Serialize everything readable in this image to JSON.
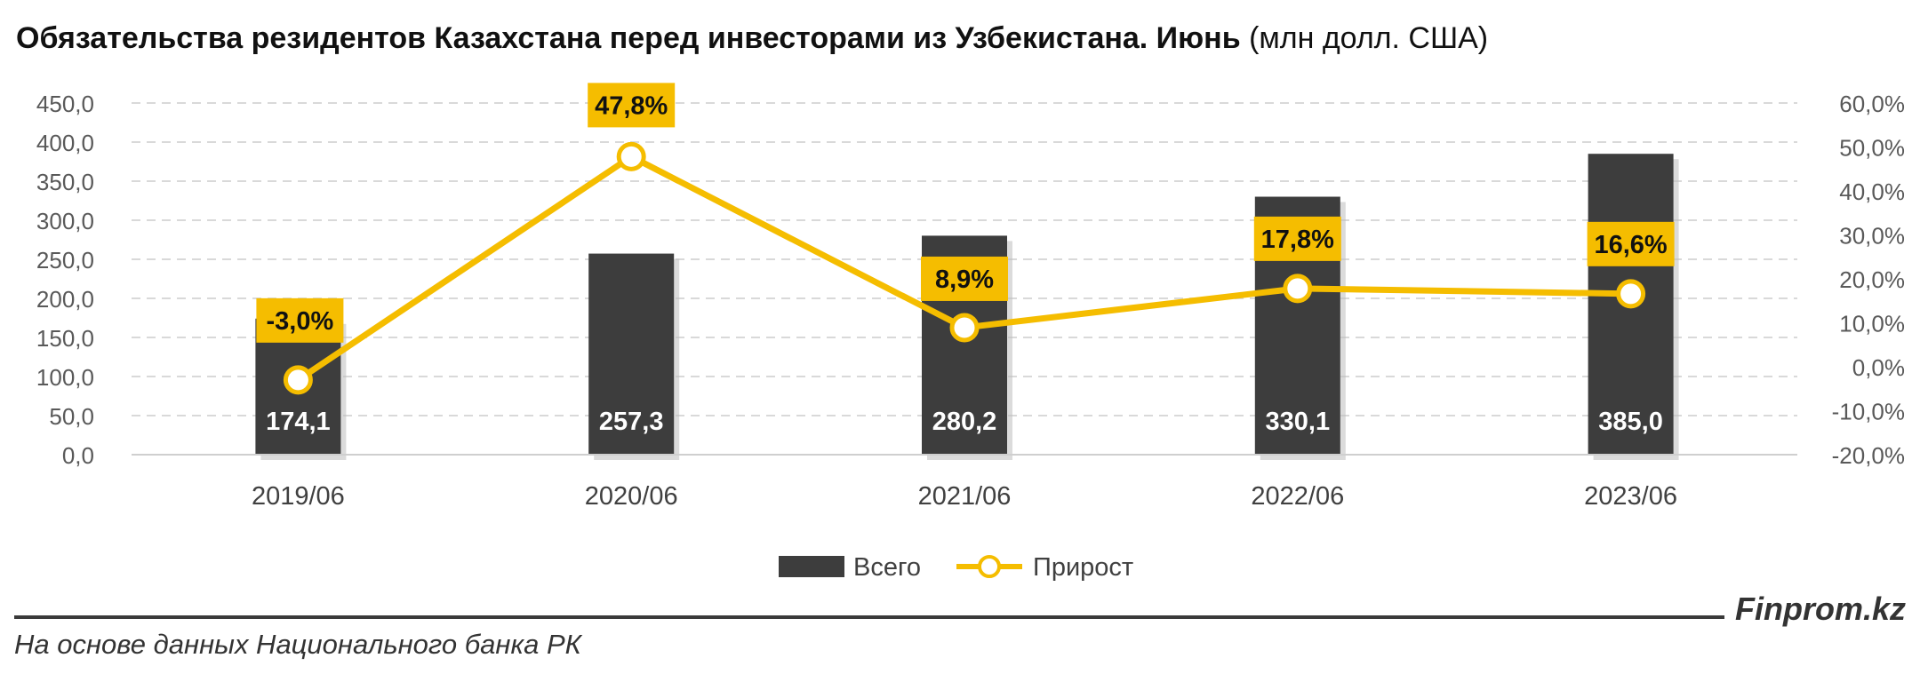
{
  "header": {
    "title_bold": "Обязательства резидентов Казахстана перед инвесторами из Узбекистана. Июнь",
    "title_unit": "(млн долл. США)"
  },
  "chart_data": {
    "type": "bar",
    "categories": [
      "2019/06",
      "2020/06",
      "2021/06",
      "2022/06",
      "2023/06"
    ],
    "series": [
      {
        "name": "Всего",
        "type": "bar",
        "axis": "left",
        "values": [
          174.1,
          257.3,
          280.2,
          330.1,
          385.0
        ],
        "labels": [
          "174,1",
          "257,3",
          "280,2",
          "330,1",
          "385,0"
        ],
        "color": "#3d3d3d"
      },
      {
        "name": "Прирост",
        "type": "line",
        "axis": "right",
        "values": [
          -3.0,
          47.8,
          8.9,
          17.8,
          16.6
        ],
        "labels": [
          "-3,0%",
          "47,8%",
          "8,9%",
          "17,8%",
          "16,6%"
        ],
        "color": "#f5bd00"
      }
    ],
    "y_left": {
      "min": 0,
      "max": 450,
      "ticks": [
        "0,0",
        "50,0",
        "100,0",
        "150,0",
        "200,0",
        "250,0",
        "300,0",
        "350,0",
        "400,0",
        "450,0"
      ]
    },
    "y_right": {
      "min": -20,
      "max": 60,
      "ticks": [
        "-20,0%",
        "-10,0%",
        "0,0%",
        "10,0%",
        "20,0%",
        "30,0%",
        "40,0%",
        "50,0%",
        "60,0%"
      ]
    },
    "grid": true,
    "legend": "bottom-center"
  },
  "footer": {
    "brand": "Finprom.kz",
    "source": "На основе данных Национального банка РК"
  }
}
